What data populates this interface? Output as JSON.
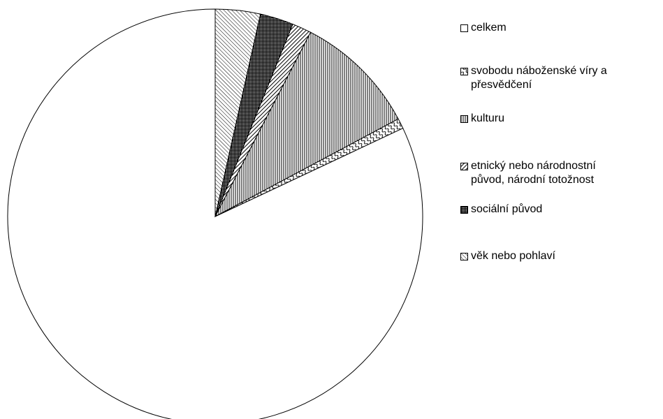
{
  "chart_data": {
    "type": "pie",
    "title": "",
    "start_angle_deg": 0,
    "direction": "counterclockwise",
    "legend_position": "right",
    "categories": [
      "celkem",
      "svobodu náboženské víry a\npřesvědčení",
      "kulturu",
      "etnický nebo národnostní\npůvod, národní totožnost",
      "sociální původ",
      "věk nebo pohlaví"
    ],
    "values": [
      82.0,
      0.8,
      9.6,
      1.5,
      2.6,
      3.5
    ],
    "value_unit": "percent of whole (estimated)",
    "patterns": [
      "solid-white",
      "wavy-diagonal",
      "vertical-lines",
      "diagonal-lines",
      "dense-checker",
      "back-diagonal-lines"
    ]
  },
  "colors": {
    "background": "#ffffff",
    "stroke": "#000000",
    "fill": "#ffffff"
  }
}
